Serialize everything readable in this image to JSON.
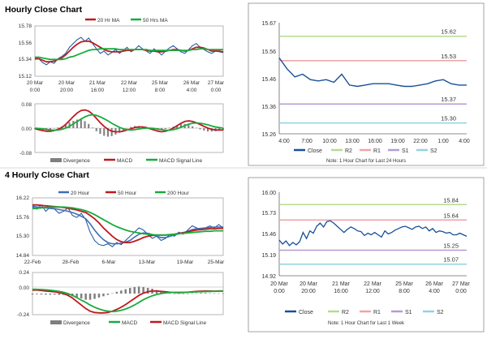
{
  "top_section": {
    "title": "Hourly Close Chart"
  },
  "bottom_section": {
    "title": "4 Hourly Close Chart"
  },
  "colors": {
    "close": "#17509a",
    "ma_red": "#c0181f",
    "ma_green": "#1aab3e",
    "ma_blue": "#3f6eb5",
    "r2": "#b7dc8e",
    "r1": "#eea3a6",
    "s1": "#b59cd3",
    "s2": "#8fd3e2",
    "divergence": "#7f7f7f",
    "axis": "#666666"
  },
  "chart_data": [
    {
      "id": "hourly_price",
      "type": "line",
      "title": "Hourly Close Chart",
      "ylim": [
        15.12,
        15.78
      ],
      "yticks": [
        "15.78",
        "15.56",
        "15.34",
        "15.12"
      ],
      "xticks": [
        [
          "20 Mar",
          "0:00"
        ],
        [
          "20 Mar",
          "20:00"
        ],
        [
          "21 Mar",
          "16:00"
        ],
        [
          "22 Mar",
          "12:00"
        ],
        [
          "25 Mar",
          "8:00"
        ],
        [
          "26 Mar",
          "4:00"
        ],
        [
          "27 Mar",
          "0:00"
        ]
      ],
      "legend": [
        "20 Hr MA",
        "50 Hrs MA"
      ],
      "series": [
        {
          "name": "Close",
          "values": [
            15.34,
            15.35,
            15.3,
            15.27,
            15.31,
            15.29,
            15.35,
            15.38,
            15.42,
            15.5,
            15.55,
            15.6,
            15.63,
            15.58,
            15.62,
            15.55,
            15.48,
            15.42,
            15.45,
            15.4,
            15.43,
            15.47,
            15.42,
            15.46,
            15.5,
            15.44,
            15.47,
            15.52,
            15.48,
            15.45,
            15.42,
            15.48,
            15.44,
            15.4,
            15.45,
            15.49,
            15.52,
            15.48,
            15.44,
            15.42,
            15.47,
            15.52,
            15.55,
            15.5,
            15.47,
            15.44,
            15.42,
            15.45,
            15.44,
            15.43
          ]
        },
        {
          "name": "20 Hr MA",
          "values": [
            15.35,
            15.35,
            15.33,
            15.31,
            15.31,
            15.32,
            15.34,
            15.36,
            15.4,
            15.45,
            15.5,
            15.54,
            15.57,
            15.58,
            15.58,
            15.56,
            15.53,
            15.5,
            15.47,
            15.45,
            15.44,
            15.44,
            15.44,
            15.45,
            15.46,
            15.46,
            15.47,
            15.47,
            15.47,
            15.46,
            15.45,
            15.45,
            15.44,
            15.44,
            15.45,
            15.46,
            15.47,
            15.47,
            15.46,
            15.45,
            15.46,
            15.48,
            15.5,
            15.5,
            15.49,
            15.47,
            15.45,
            15.45,
            15.45,
            15.44
          ]
        },
        {
          "name": "50 Hrs MA",
          "values": [
            15.37,
            15.37,
            15.36,
            15.35,
            15.34,
            15.34,
            15.34,
            15.34,
            15.35,
            15.37,
            15.38,
            15.4,
            15.42,
            15.44,
            15.46,
            15.47,
            15.47,
            15.48,
            15.48,
            15.48,
            15.48,
            15.48,
            15.47,
            15.47,
            15.47,
            15.47,
            15.47,
            15.47,
            15.47,
            15.47,
            15.46,
            15.46,
            15.46,
            15.46,
            15.46,
            15.46,
            15.46,
            15.46,
            15.46,
            15.46,
            15.46,
            15.47,
            15.47,
            15.48,
            15.48,
            15.47,
            15.47,
            15.47,
            15.47,
            15.47
          ]
        }
      ]
    },
    {
      "id": "hourly_macd",
      "type": "line",
      "ylim": [
        -0.08,
        0.08
      ],
      "yticks": [
        "0.08",
        "0.00",
        "-0.08"
      ],
      "legend": [
        "Divergence",
        "MACD",
        "MACD Signal Line"
      ],
      "series": [
        {
          "name": "MACD",
          "values": [
            -0.002,
            -0.005,
            -0.008,
            -0.01,
            -0.01,
            -0.008,
            -0.004,
            0.002,
            0.012,
            0.025,
            0.038,
            0.05,
            0.058,
            0.06,
            0.056,
            0.046,
            0.032,
            0.018,
            0.006,
            -0.004,
            -0.01,
            -0.012,
            -0.012,
            -0.01,
            -0.006,
            -0.002,
            0.002,
            0.004,
            0.004,
            0.002,
            -0.002,
            -0.006,
            -0.01,
            -0.012,
            -0.01,
            -0.006,
            0.0,
            0.008,
            0.016,
            0.022,
            0.024,
            0.022,
            0.018,
            0.012,
            0.006,
            0.0,
            -0.004,
            -0.006,
            -0.006,
            -0.006
          ]
        },
        {
          "name": "MACD Signal Line",
          "values": [
            0.0,
            -0.001,
            -0.002,
            -0.004,
            -0.006,
            -0.007,
            -0.006,
            -0.004,
            0.0,
            0.006,
            0.014,
            0.022,
            0.03,
            0.037,
            0.042,
            0.044,
            0.042,
            0.037,
            0.031,
            0.024,
            0.016,
            0.009,
            0.003,
            -0.002,
            -0.005,
            -0.006,
            -0.005,
            -0.003,
            -0.001,
            0.0,
            0.0,
            -0.001,
            -0.003,
            -0.005,
            -0.007,
            -0.007,
            -0.005,
            -0.002,
            0.003,
            0.008,
            0.013,
            0.016,
            0.017,
            0.016,
            0.014,
            0.011,
            0.007,
            0.004,
            0.002,
            0.0
          ]
        }
      ]
    },
    {
      "id": "hourly_levels",
      "type": "line",
      "ylim": [
        15.26,
        15.67
      ],
      "yticks": [
        "15.67",
        "15.56",
        "15.46",
        "15.36",
        "15.26"
      ],
      "xticks": [
        "4:00",
        "7:00",
        "10:00",
        "13:00",
        "16:00",
        "19:00",
        "22:00",
        "1:00",
        "4:00"
      ],
      "legend": [
        "Close",
        "R2",
        "R1",
        "S1",
        "S2"
      ],
      "levels": [
        {
          "name": "R2",
          "value": 15.62,
          "label": "15.62"
        },
        {
          "name": "R1",
          "value": 15.53,
          "label": "15.53"
        },
        {
          "name": "S1",
          "value": 15.37,
          "label": "15.37"
        },
        {
          "name": "S2",
          "value": 15.3,
          "label": "15.30"
        }
      ],
      "series": [
        {
          "name": "Close",
          "values": [
            15.54,
            15.5,
            15.47,
            15.48,
            15.46,
            15.455,
            15.46,
            15.45,
            15.48,
            15.44,
            15.435,
            15.44,
            15.445,
            15.445,
            15.445,
            15.44,
            15.435,
            15.435,
            15.44,
            15.445,
            15.455,
            15.46,
            15.445,
            15.44,
            15.44
          ]
        }
      ],
      "note": "Note: 1 Hour Chart for Last 24 Hours"
    },
    {
      "id": "four_hourly_price",
      "type": "line",
      "title": "4 Hourly Close Chart",
      "ylim": [
        14.84,
        16.22
      ],
      "yticks": [
        "16.22",
        "15.76",
        "15.30",
        "14.84"
      ],
      "xticks": [
        "22-Feb",
        "28-Feb",
        "6-Mar",
        "13-Mar",
        "19-Mar",
        "25-Mar"
      ],
      "legend": [
        "20 Hour",
        "50 Hour",
        "200 Hour"
      ],
      "series": [
        {
          "name": "Close",
          "values": [
            16.0,
            15.95,
            16.05,
            15.9,
            16.0,
            15.95,
            15.85,
            15.9,
            15.98,
            15.8,
            15.75,
            15.85,
            15.7,
            15.4,
            15.2,
            15.1,
            15.08,
            15.12,
            15.05,
            15.15,
            15.1,
            15.2,
            15.3,
            15.4,
            15.5,
            15.45,
            15.35,
            15.25,
            15.3,
            15.2,
            15.25,
            15.35,
            15.3,
            15.4,
            15.35,
            15.45,
            15.55,
            15.5,
            15.45,
            15.5,
            15.55,
            15.5,
            15.58,
            15.5
          ]
        },
        {
          "name": "20 Hour",
          "values": [
            16.02,
            16.0,
            15.99,
            15.98,
            15.97,
            15.96,
            15.94,
            15.92,
            15.9,
            15.87,
            15.83,
            15.78,
            15.72,
            15.6,
            15.45,
            15.32,
            15.22,
            15.15,
            15.12,
            15.12,
            15.13,
            15.16,
            15.2,
            15.28,
            15.35,
            15.38,
            15.37,
            15.34,
            15.3,
            15.27,
            15.27,
            15.3,
            15.33,
            15.36,
            15.38,
            15.42,
            15.46,
            15.48,
            15.49,
            15.5,
            15.51,
            15.52,
            15.52,
            15.52
          ]
        },
        {
          "name": "50 Hour",
          "values": [
            16.05,
            16.05,
            16.04,
            16.03,
            16.02,
            16.01,
            16.0,
            15.99,
            15.97,
            15.95,
            15.93,
            15.9,
            15.87,
            15.8,
            15.72,
            15.62,
            15.5,
            15.4,
            15.3,
            15.22,
            15.17,
            15.15,
            15.15,
            15.18,
            15.22,
            15.27,
            15.3,
            15.32,
            15.33,
            15.33,
            15.33,
            15.34,
            15.35,
            15.37,
            15.39,
            15.41,
            15.43,
            15.45,
            15.46,
            15.47,
            15.48,
            15.48,
            15.49,
            15.49
          ]
        },
        {
          "name": "200 Hour",
          "values": [
            15.96,
            15.97,
            15.98,
            15.99,
            16.0,
            16.0,
            16.0,
            16.0,
            15.99,
            15.98,
            15.96,
            15.94,
            15.91,
            15.87,
            15.82,
            15.76,
            15.7,
            15.64,
            15.58,
            15.53,
            15.49,
            15.45,
            15.42,
            15.4,
            15.38,
            15.36,
            15.35,
            15.34,
            15.33,
            15.33,
            15.33,
            15.34,
            15.35,
            15.36,
            15.37,
            15.38,
            15.39,
            15.4,
            15.41,
            15.42,
            15.42,
            15.43,
            15.43,
            15.43
          ]
        }
      ]
    },
    {
      "id": "four_hourly_macd",
      "type": "line",
      "ylim": [
        -0.24,
        0.24
      ],
      "yticks": [
        "0.24",
        "0.00",
        "-0.24"
      ],
      "legend": [
        "Divergence",
        "MACD",
        "MACD Signal Line"
      ],
      "series": [
        {
          "name": "MACD",
          "values": [
            0.04,
            0.04,
            0.035,
            0.03,
            0.025,
            0.02,
            0.01,
            0.0,
            -0.02,
            -0.05,
            -0.09,
            -0.13,
            -0.17,
            -0.2,
            -0.215,
            -0.22,
            -0.22,
            -0.215,
            -0.2,
            -0.18,
            -0.155,
            -0.125,
            -0.09,
            -0.055,
            -0.02,
            0.005,
            0.02,
            0.03,
            0.03,
            0.025,
            0.02,
            0.015,
            0.012,
            0.01,
            0.012,
            0.015,
            0.02,
            0.025,
            0.028,
            0.03,
            0.03,
            0.028,
            0.03,
            0.03
          ]
        },
        {
          "name": "MACD Signal Line",
          "values": [
            0.05,
            0.048,
            0.046,
            0.042,
            0.038,
            0.032,
            0.025,
            0.015,
            0.0,
            -0.02,
            -0.045,
            -0.075,
            -0.1,
            -0.13,
            -0.155,
            -0.175,
            -0.19,
            -0.2,
            -0.205,
            -0.2,
            -0.19,
            -0.175,
            -0.155,
            -0.13,
            -0.1,
            -0.07,
            -0.045,
            -0.025,
            -0.01,
            0.0,
            0.008,
            0.012,
            0.014,
            0.015,
            0.015,
            0.016,
            0.017,
            0.019,
            0.021,
            0.023,
            0.025,
            0.026,
            0.027,
            0.028
          ]
        }
      ]
    },
    {
      "id": "four_hourly_levels",
      "type": "line",
      "ylim": [
        14.92,
        16.0
      ],
      "yticks": [
        "16.00",
        "15.73",
        "15.46",
        "15.19",
        "14.92"
      ],
      "xticks": [
        [
          "20 Mar",
          "0:00"
        ],
        [
          "20 Mar",
          "20:00"
        ],
        [
          "21 Mar",
          "16:00"
        ],
        [
          "22 Mar",
          "12:00"
        ],
        [
          "25 Mar",
          "8:00"
        ],
        [
          "26 Mar",
          "4:00"
        ],
        [
          "27 Mar",
          "0:00"
        ]
      ],
      "legend": [
        "Close",
        "R2",
        "R1",
        "S1",
        "S2"
      ],
      "levels": [
        {
          "name": "R2",
          "value": 15.84,
          "label": "15.84"
        },
        {
          "name": "R1",
          "value": 15.64,
          "label": "15.64"
        },
        {
          "name": "S1",
          "value": 15.25,
          "label": "15.25"
        },
        {
          "name": "S2",
          "value": 15.07,
          "label": "15.07"
        }
      ],
      "series": [
        {
          "name": "Close",
          "values": [
            15.38,
            15.33,
            15.37,
            15.31,
            15.35,
            15.32,
            15.36,
            15.48,
            15.4,
            15.5,
            15.47,
            15.56,
            15.6,
            15.55,
            15.62,
            15.63,
            15.6,
            15.56,
            15.52,
            15.48,
            15.52,
            15.55,
            15.53,
            15.5,
            15.49,
            15.44,
            15.47,
            15.45,
            15.48,
            15.45,
            15.42,
            15.5,
            15.46,
            15.48,
            15.51,
            15.53,
            15.55,
            15.56,
            15.54,
            15.52,
            15.55,
            15.56,
            15.53,
            15.55,
            15.5,
            15.53,
            15.48,
            15.5,
            15.49,
            15.47,
            15.48,
            15.45,
            15.45,
            15.47,
            15.45,
            15.43
          ]
        }
      ],
      "note": "Note: 1 Hour Chart for Last 1 Week"
    }
  ]
}
